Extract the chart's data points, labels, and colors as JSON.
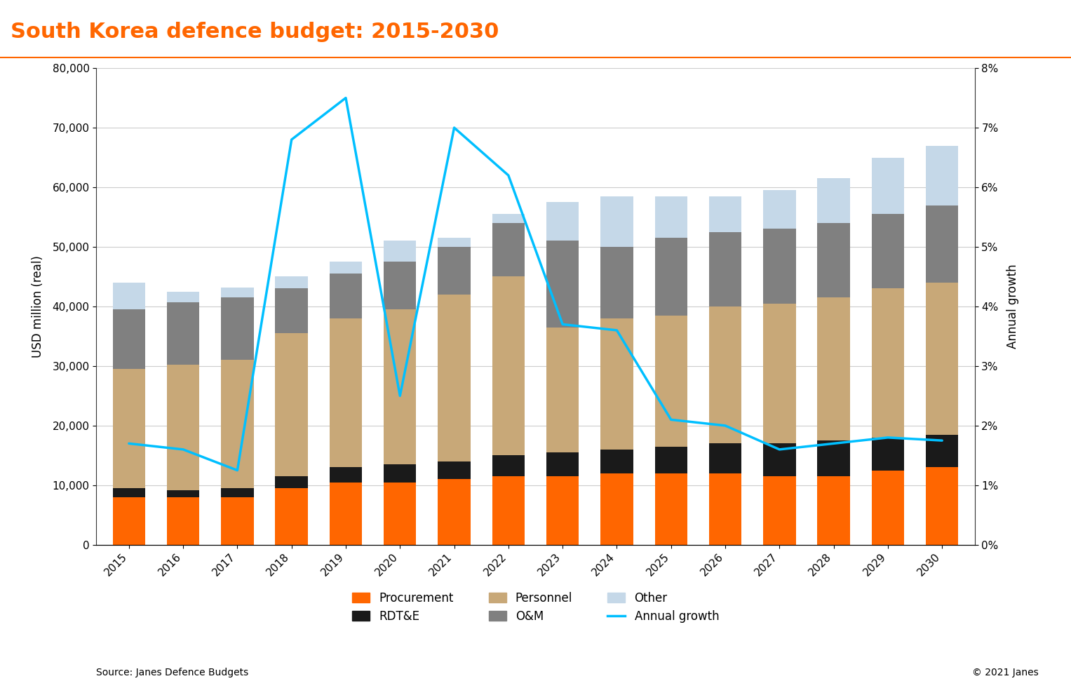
{
  "years": [
    2015,
    2016,
    2017,
    2018,
    2019,
    2020,
    2021,
    2022,
    2023,
    2024,
    2025,
    2026,
    2027,
    2028,
    2029,
    2030
  ],
  "procurement": [
    8000,
    8000,
    8000,
    9500,
    10500,
    10500,
    11000,
    11500,
    11500,
    12000,
    12000,
    12000,
    11500,
    11500,
    12500,
    13000
  ],
  "rdte": [
    1500,
    1200,
    1500,
    2000,
    2500,
    3000,
    3000,
    3500,
    4000,
    4000,
    4500,
    5000,
    5500,
    6000,
    5500,
    5500
  ],
  "personnel": [
    20000,
    21000,
    21500,
    24000,
    25000,
    26000,
    28000,
    30000,
    21000,
    22000,
    22000,
    23000,
    23500,
    24000,
    25000,
    25500
  ],
  "om": [
    10000,
    10500,
    10500,
    7500,
    7500,
    8000,
    8000,
    9000,
    14500,
    12000,
    13000,
    12500,
    12500,
    12500,
    12500,
    13000
  ],
  "other": [
    4500,
    1800,
    1700,
    2000,
    2000,
    3500,
    1500,
    1500,
    6500,
    8500,
    7000,
    6000,
    6500,
    7500,
    9500,
    10000
  ],
  "annual_growth": [
    1.7,
    1.6,
    1.25,
    6.8,
    7.5,
    2.5,
    7.0,
    6.2,
    3.7,
    3.6,
    2.1,
    2.0,
    1.6,
    1.7,
    1.8,
    1.75
  ],
  "title": "South Korea defence budget: 2015-2030",
  "ylabel_left": "USD million (real)",
  "ylabel_right": "Annual growth",
  "source_text": "Source: Janes Defence Budgets",
  "copyright_text": "© 2021 Janes",
  "bar_colors": {
    "procurement": "#FF6600",
    "rdte": "#1a1a1a",
    "personnel": "#C8A878",
    "om": "#808080",
    "other": "#C5D8E8"
  },
  "line_color": "#00BFFF",
  "title_bg_color": "#111111",
  "title_text_color": "#FF6600",
  "title_accent_color": "#FF6600",
  "ylim_left": [
    0,
    80000
  ],
  "ylim_right": [
    0,
    0.08
  ],
  "legend_labels": [
    "Procurement",
    "RDT&E",
    "Personnel",
    "O&M",
    "Other",
    "Annual growth"
  ]
}
